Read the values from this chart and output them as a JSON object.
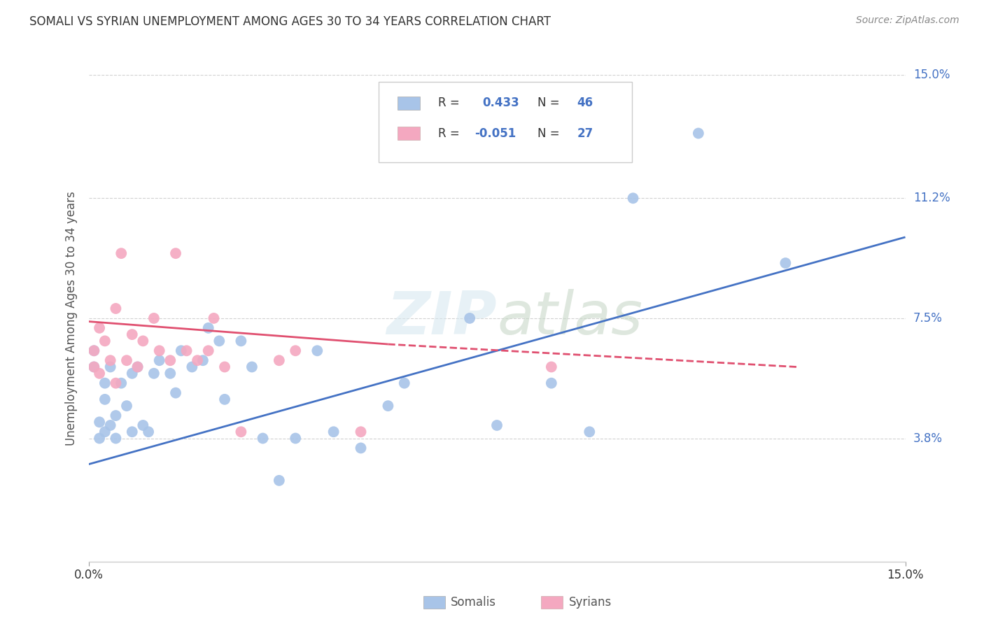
{
  "title": "SOMALI VS SYRIAN UNEMPLOYMENT AMONG AGES 30 TO 34 YEARS CORRELATION CHART",
  "source": "Source: ZipAtlas.com",
  "ylabel": "Unemployment Among Ages 30 to 34 years",
  "xlim": [
    0.0,
    0.15
  ],
  "ylim": [
    0.0,
    0.15
  ],
  "yticks": [
    0.038,
    0.075,
    0.112,
    0.15
  ],
  "ytick_labels": [
    "3.8%",
    "7.5%",
    "11.2%",
    "15.0%"
  ],
  "somali_color": "#a8c4e8",
  "syrian_color": "#f4a8c0",
  "somali_line_color": "#4472c4",
  "syrian_line_color": "#e05070",
  "background_color": "#ffffff",
  "watermark_text": "ZIPatlas",
  "somali_x": [
    0.001,
    0.001,
    0.002,
    0.002,
    0.003,
    0.003,
    0.003,
    0.004,
    0.004,
    0.005,
    0.005,
    0.006,
    0.007,
    0.008,
    0.008,
    0.009,
    0.01,
    0.011,
    0.012,
    0.013,
    0.015,
    0.016,
    0.017,
    0.019,
    0.021,
    0.022,
    0.024,
    0.025,
    0.028,
    0.03,
    0.032,
    0.035,
    0.038,
    0.042,
    0.045,
    0.05,
    0.055,
    0.058,
    0.065,
    0.07,
    0.075,
    0.085,
    0.092,
    0.1,
    0.112,
    0.128
  ],
  "somali_y": [
    0.06,
    0.065,
    0.038,
    0.043,
    0.04,
    0.05,
    0.055,
    0.042,
    0.06,
    0.038,
    0.045,
    0.055,
    0.048,
    0.04,
    0.058,
    0.06,
    0.042,
    0.04,
    0.058,
    0.062,
    0.058,
    0.052,
    0.065,
    0.06,
    0.062,
    0.072,
    0.068,
    0.05,
    0.068,
    0.06,
    0.038,
    0.025,
    0.038,
    0.065,
    0.04,
    0.035,
    0.048,
    0.055,
    0.13,
    0.075,
    0.042,
    0.055,
    0.04,
    0.112,
    0.132,
    0.092
  ],
  "syrian_x": [
    0.001,
    0.001,
    0.002,
    0.002,
    0.003,
    0.004,
    0.005,
    0.005,
    0.006,
    0.007,
    0.008,
    0.009,
    0.01,
    0.012,
    0.013,
    0.015,
    0.016,
    0.018,
    0.02,
    0.022,
    0.023,
    0.025,
    0.028,
    0.035,
    0.038,
    0.05,
    0.085
  ],
  "syrian_y": [
    0.06,
    0.065,
    0.072,
    0.058,
    0.068,
    0.062,
    0.055,
    0.078,
    0.095,
    0.062,
    0.07,
    0.06,
    0.068,
    0.075,
    0.065,
    0.062,
    0.095,
    0.065,
    0.062,
    0.065,
    0.075,
    0.06,
    0.04,
    0.062,
    0.065,
    0.04,
    0.06
  ],
  "somali_trend_x": [
    0.0,
    0.15
  ],
  "somali_trend_y": [
    0.03,
    0.1
  ],
  "syrian_trend_x": [
    0.0,
    0.09
  ],
  "syrian_trend_y": [
    0.074,
    0.063
  ]
}
